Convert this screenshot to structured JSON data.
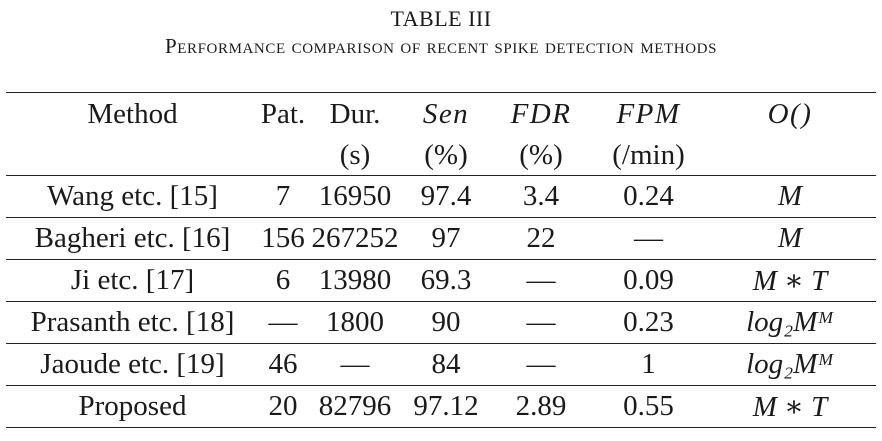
{
  "caption": {
    "number": "TABLE III",
    "title": "Performance comparison of recent spike detection methods"
  },
  "table": {
    "header_row1": [
      "Method",
      "Pat.",
      "Dur.",
      "Sen",
      "FDR",
      "FPM",
      "O()"
    ],
    "header_row2": [
      "",
      "",
      "(s)",
      "(%)",
      "(%)",
      "(/min)",
      ""
    ],
    "rows": [
      [
        "Wang etc. [15]",
        "7",
        "16950",
        "97.4",
        "3.4",
        "0.24",
        "M"
      ],
      [
        "Bagheri etc. [16]",
        "156",
        "267252",
        "97",
        "22",
        "—",
        "M"
      ],
      [
        "Ji etc. [17]",
        "6",
        "13980",
        "69.3",
        "—",
        "0.09",
        "M ∗ T"
      ],
      [
        "Prasanth etc. [18]",
        "—",
        "1800",
        "90",
        "—",
        "0.23",
        "log₂Mᴹ"
      ],
      [
        "Jaoude etc. [19]",
        "46",
        "—",
        "84",
        "—",
        "1",
        "log₂Mᴹ"
      ],
      [
        "Proposed",
        "20",
        "82796",
        "97.12",
        "2.89",
        "0.55",
        "M ∗ T"
      ]
    ]
  }
}
